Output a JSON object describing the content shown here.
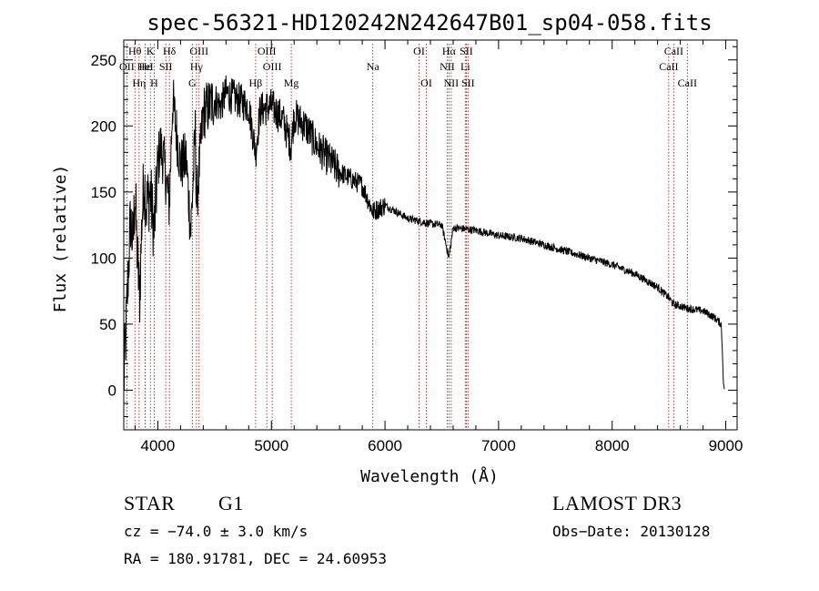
{
  "chart_data": {
    "type": "line",
    "title": "spec-56321-HD120242N242647B01_sp04-058.fits",
    "xlabel": "Wavelength (Å)",
    "ylabel": "Flux (relative)",
    "xlim": [
      3700,
      9100
    ],
    "ylim": [
      -30,
      265
    ],
    "x_ticks": [
      4000,
      5000,
      6000,
      7000,
      8000,
      9000
    ],
    "y_ticks": [
      0,
      50,
      100,
      150,
      200,
      250
    ],
    "series": [
      {
        "name": "flux",
        "anchor_points": [
          [
            3700,
            5
          ],
          [
            3720,
            45
          ],
          [
            3740,
            90
          ],
          [
            3760,
            130
          ],
          [
            3780,
            110
          ],
          [
            3800,
            150
          ],
          [
            3820,
            100
          ],
          [
            3840,
            70
          ],
          [
            3860,
            130
          ],
          [
            3880,
            160
          ],
          [
            3900,
            140
          ],
          [
            3933,
            150
          ],
          [
            3968,
            120
          ],
          [
            4000,
            170
          ],
          [
            4020,
            185
          ],
          [
            4050,
            175
          ],
          [
            4101,
            140
          ],
          [
            4130,
            220
          ],
          [
            4200,
            170
          ],
          [
            4250,
            175
          ],
          [
            4290,
            120
          ],
          [
            4330,
            195
          ],
          [
            4340,
            140
          ],
          [
            4400,
            210
          ],
          [
            4500,
            220
          ],
          [
            4550,
            215
          ],
          [
            4600,
            225
          ],
          [
            4700,
            220
          ],
          [
            4800,
            215
          ],
          [
            4861,
            180
          ],
          [
            4900,
            212
          ],
          [
            5000,
            215
          ],
          [
            5100,
            205
          ],
          [
            5173,
            185
          ],
          [
            5200,
            208
          ],
          [
            5300,
            200
          ],
          [
            5400,
            185
          ],
          [
            5500,
            175
          ],
          [
            5600,
            165
          ],
          [
            5700,
            160
          ],
          [
            5800,
            155
          ],
          [
            5893,
            135
          ],
          [
            6000,
            140
          ],
          [
            6100,
            135
          ],
          [
            6200,
            130
          ],
          [
            6300,
            128
          ],
          [
            6400,
            126
          ],
          [
            6500,
            125
          ],
          [
            6563,
            100
          ],
          [
            6600,
            123
          ],
          [
            6700,
            122
          ],
          [
            6800,
            121
          ],
          [
            6900,
            119
          ],
          [
            7000,
            117
          ],
          [
            7200,
            115
          ],
          [
            7400,
            110
          ],
          [
            7600,
            105
          ],
          [
            7800,
            100
          ],
          [
            8000,
            95
          ],
          [
            8200,
            88
          ],
          [
            8400,
            78
          ],
          [
            8498,
            70
          ],
          [
            8542,
            65
          ],
          [
            8662,
            62
          ],
          [
            8800,
            60
          ],
          [
            8900,
            55
          ],
          [
            8960,
            50
          ],
          [
            8970,
            30
          ],
          [
            8980,
            5
          ],
          [
            8990,
            0
          ]
        ]
      }
    ],
    "spectral_lines": [
      {
        "label": "Hθ",
        "wavelength": 3798,
        "row": 0
      },
      {
        "label": "K",
        "wavelength": 3934,
        "row": 0
      },
      {
        "label": "Hδ",
        "wavelength": 4102,
        "row": 0
      },
      {
        "label": "OIII",
        "wavelength": 4363,
        "row": 0
      },
      {
        "label": "OIII",
        "wavelength": 4959,
        "row": 0
      },
      {
        "label": "OI",
        "wavelength": 6300,
        "row": 0
      },
      {
        "label": "Hα",
        "wavelength": 6563,
        "row": 0
      },
      {
        "label": "SII",
        "wavelength": 6716,
        "row": 0
      },
      {
        "label": "CaII",
        "wavelength": 8542,
        "row": 0
      },
      {
        "label": "OII",
        "wavelength": 3727,
        "row": 1
      },
      {
        "label": "Hε",
        "wavelength": 3889,
        "row": 1
      },
      {
        "label": "HeI",
        "wavelength": 3889,
        "row": 1
      },
      {
        "label": "SII",
        "wavelength": 4070,
        "row": 1
      },
      {
        "label": "Hγ",
        "wavelength": 4340,
        "row": 1
      },
      {
        "label": "OIII",
        "wavelength": 5007,
        "row": 1
      },
      {
        "label": "Na",
        "wavelength": 5893,
        "row": 1
      },
      {
        "label": "NII",
        "wavelength": 6548,
        "row": 1
      },
      {
        "label": "Li",
        "wavelength": 6707,
        "row": 1
      },
      {
        "label": "CaII",
        "wavelength": 8498,
        "row": 1
      },
      {
        "label": "Hη",
        "wavelength": 3835,
        "row": 2
      },
      {
        "label": "H",
        "wavelength": 3968,
        "row": 2
      },
      {
        "label": "G",
        "wavelength": 4304,
        "row": 2
      },
      {
        "label": "Hβ",
        "wavelength": 4861,
        "row": 2
      },
      {
        "label": "Mg",
        "wavelength": 5175,
        "row": 2
      },
      {
        "label": "OI",
        "wavelength": 6364,
        "row": 2
      },
      {
        "label": "NII",
        "wavelength": 6583,
        "row": 2
      },
      {
        "label": "SII",
        "wavelength": 6731,
        "row": 2
      },
      {
        "label": "CaII",
        "wavelength": 8662,
        "row": 2
      }
    ]
  },
  "info": {
    "class_label": "STAR",
    "subclass": "G1",
    "survey": "LAMOST DR3",
    "cz": "cz = −74.0 ± 3.0 km/s",
    "obs_date": "Obs−Date: 20130128",
    "coords": "RA = 180.91781, DEC =  24.60953"
  },
  "colors": {
    "line": "#000000",
    "marker": "#b22222"
  }
}
